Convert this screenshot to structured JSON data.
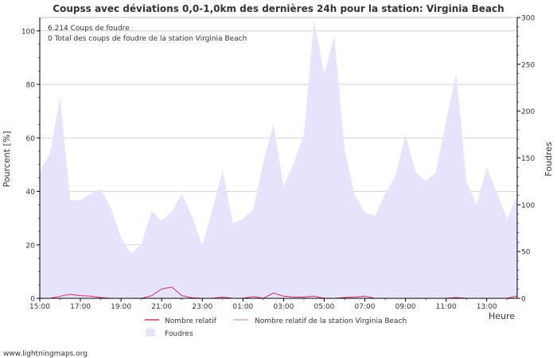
{
  "chart_data": {
    "type": "area",
    "title": "Coupss avec déviations 0,0-1,0km des dernières 24h pour la station: Virginia Beach",
    "ylabel_left": "Pourcent   [%]",
    "ylabel_right": "Foudres",
    "xlabel": "Heure",
    "ylim_left": [
      0,
      105
    ],
    "ylim_right": [
      0,
      300
    ],
    "yticks_left": [
      0,
      20,
      40,
      60,
      80,
      100
    ],
    "yticks_right": [
      0,
      50,
      100,
      150,
      200,
      250,
      300
    ],
    "x_ticks": [
      "15:00",
      "17:00",
      "19:00",
      "21:00",
      "23:00",
      "01:00",
      "03:00",
      "05:00",
      "07:00",
      "09:00",
      "11:00",
      "13:00"
    ],
    "info_lines": [
      "6.214  Coups de foudre",
      "0 Total des coups de foudre de la station Virginia Beach"
    ],
    "legend": [
      "Nombre relatif",
      "Nombre relatif de la station Virginia Beach",
      "Foudres"
    ],
    "watermark": "www.lightningmaps.org",
    "hours": [
      0,
      0.5,
      1,
      1.5,
      2,
      2.5,
      3,
      3.5,
      4,
      4.5,
      5,
      5.5,
      6,
      6.5,
      7,
      7.5,
      8,
      8.5,
      9,
      9.5,
      10,
      10.5,
      11,
      11.5,
      12,
      12.5,
      13,
      13.5,
      14,
      14.5,
      15,
      15.5,
      16,
      16.5,
      17,
      17.5,
      18,
      18.5,
      19,
      19.5,
      20,
      20.5,
      21,
      21.5,
      22,
      22.5,
      23,
      23.5
    ],
    "series": [
      {
        "name": "Foudres",
        "axis": "right",
        "values": [
          135,
          155,
          215,
          105,
          105,
          112,
          117,
          97,
          65,
          48,
          58,
          93,
          83,
          93,
          112,
          87,
          57,
          95,
          137,
          80,
          85,
          95,
          145,
          187,
          120,
          145,
          175,
          297,
          240,
          280,
          160,
          110,
          92,
          88,
          112,
          130,
          175,
          135,
          125,
          135,
          190,
          240,
          125,
          100,
          140,
          113,
          85,
          110
        ]
      },
      {
        "name": "Nombre relatif",
        "axis": "left",
        "values": [
          0,
          0,
          0.8,
          1.5,
          1,
          0.8,
          0.3,
          0,
          0,
          0,
          0,
          1,
          3.5,
          4.2,
          1,
          0.2,
          0,
          0,
          0.5,
          0,
          0,
          0.7,
          0,
          2,
          0.8,
          0.5,
          0.5,
          0.8,
          0,
          0,
          0.3,
          0.5,
          0.8,
          0,
          0,
          0,
          0,
          0,
          0,
          0,
          0,
          0.3,
          0,
          0,
          0,
          0,
          0,
          0.9
        ]
      },
      {
        "name": "Nombre relatif de la station Virginia Beach",
        "axis": "left",
        "values": [
          0,
          0,
          0,
          0,
          0,
          0,
          0,
          0,
          0,
          0,
          0,
          0,
          0,
          0,
          0,
          0,
          0,
          0,
          0,
          0,
          0,
          0,
          0,
          0,
          0,
          0,
          0,
          0,
          0,
          0,
          0,
          0,
          0,
          0,
          0,
          0,
          0,
          0,
          0,
          0,
          0,
          0,
          0,
          0,
          0,
          0,
          0,
          0
        ]
      }
    ],
    "colors": {
      "area_fill": "#e6e4fc",
      "relatif_line": "#d6305b",
      "station_line": "#f2a0a0",
      "grid": "#c8c8c8",
      "axis": "#000000",
      "text": "#333333"
    }
  }
}
